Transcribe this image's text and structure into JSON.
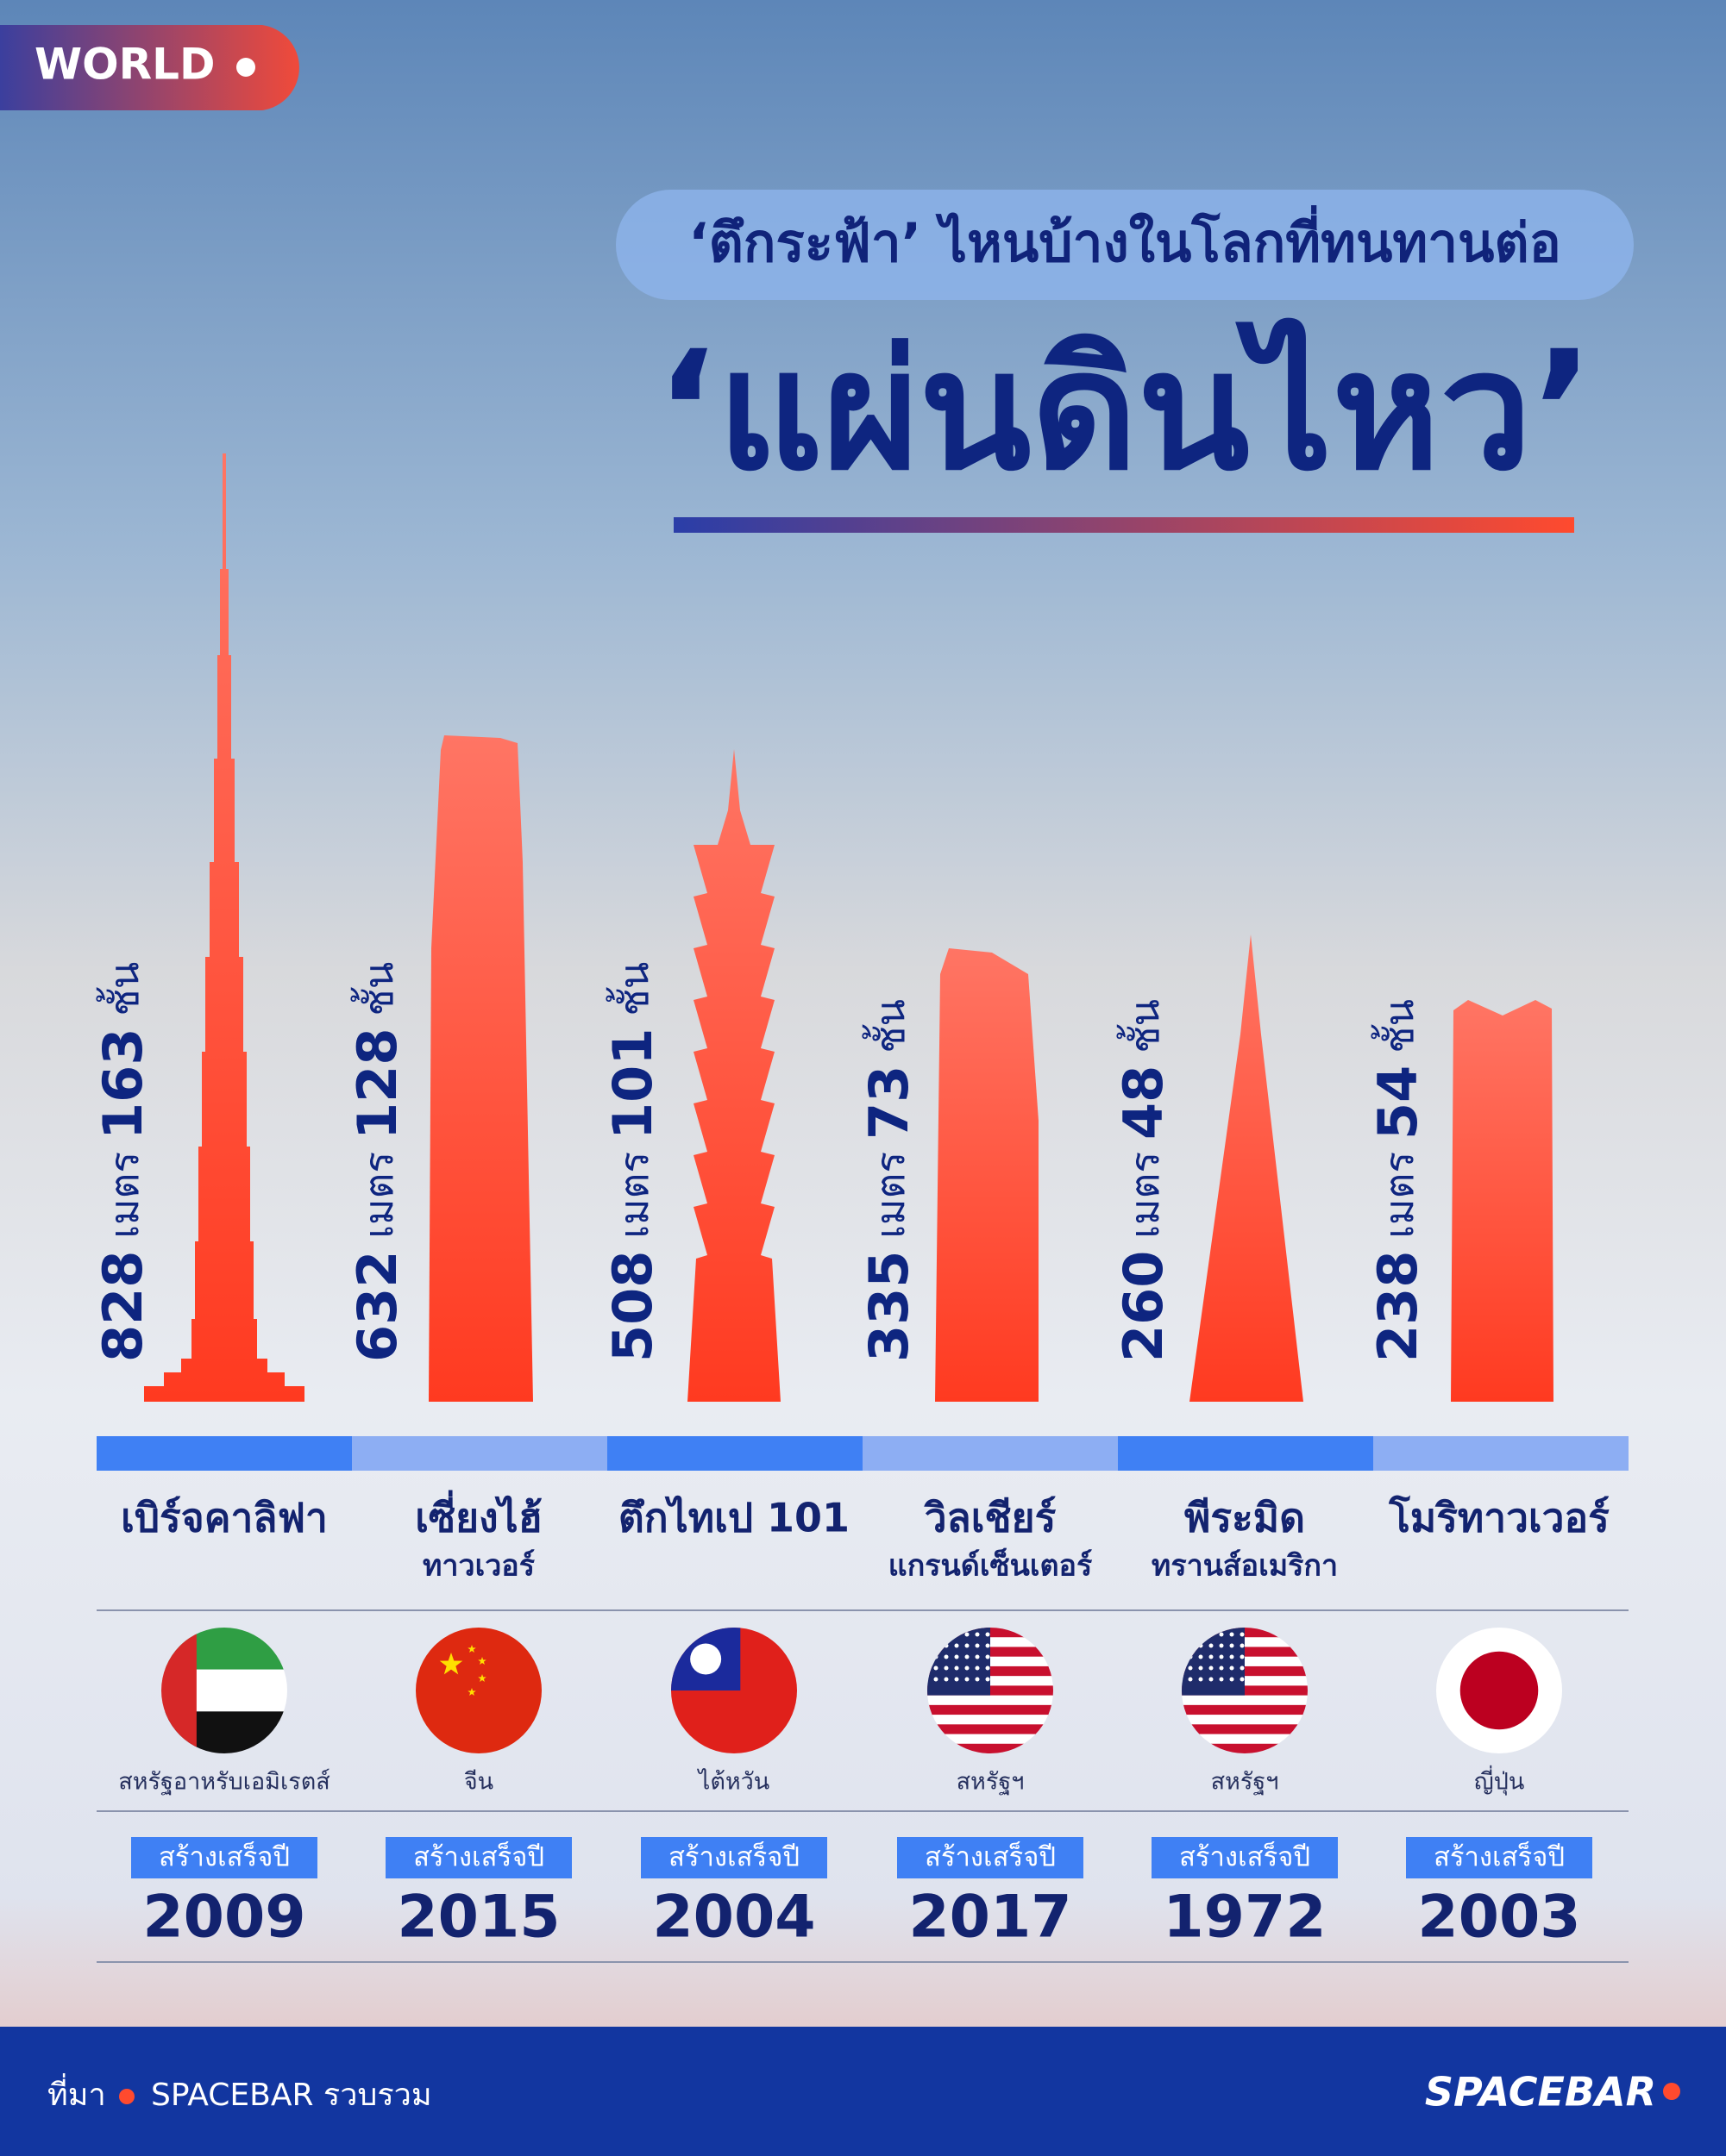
{
  "header": {
    "badge": "WORLD",
    "title_line1": "‘ตึกระฟ้า’ ไหนบ้างในโลกที่ทนทานต่อ",
    "title_line2": "‘แผ่นดินไหว’"
  },
  "units": {
    "height": "เมตร",
    "floors": "ชั้น"
  },
  "built_label": "สร้างเสร็จปี",
  "buildings": [
    {
      "height": "828",
      "floors": "163",
      "name": [
        "เบิร์จคาลิฟา"
      ],
      "country": "สหรัฐอาหรับเอมิเรตส์",
      "year": "2009"
    },
    {
      "height": "632",
      "floors": "128",
      "name": [
        "เซี่ยงไฮ้",
        "ทาวเวอร์"
      ],
      "country": "จีน",
      "year": "2015"
    },
    {
      "height": "508",
      "floors": "101",
      "name": [
        "ตึกไทเป 101"
      ],
      "country": "ไต้หวัน",
      "year": "2004"
    },
    {
      "height": "335",
      "floors": "73",
      "name": [
        "วิลเชียร์",
        "แกรนด์เซ็นเตอร์"
      ],
      "country": "สหรัฐฯ",
      "year": "2017"
    },
    {
      "height": "260",
      "floors": "48",
      "name": [
        "พีระมิด",
        "ทรานส์อเมริกา"
      ],
      "country": "สหรัฐฯ",
      "year": "1972"
    },
    {
      "height": "238",
      "floors": "54",
      "name": [
        "โมริทาวเวอร์"
      ],
      "country": "ญี่ปุ่น",
      "year": "2003"
    }
  ],
  "footer": {
    "source_label": "ที่มา",
    "source": "SPACEBAR รวบรวม",
    "brand": "SPACEBAR"
  }
}
